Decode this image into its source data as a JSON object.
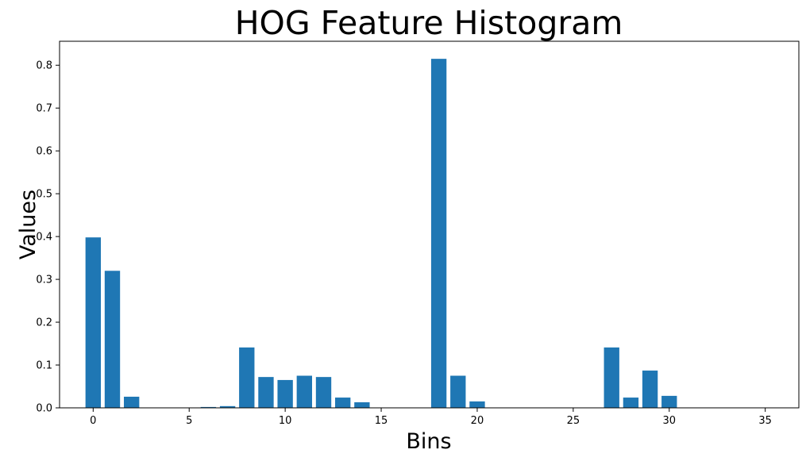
{
  "chart_data": {
    "type": "bar",
    "title": "HOG Feature Histogram",
    "xlabel": "Bins",
    "ylabel": "Values",
    "x": [
      0,
      1,
      2,
      3,
      4,
      5,
      6,
      7,
      8,
      9,
      10,
      11,
      12,
      13,
      14,
      15,
      16,
      17,
      18,
      19,
      20,
      21,
      22,
      23,
      24,
      25,
      26,
      27,
      28,
      29,
      30,
      31,
      32,
      33,
      34,
      35
    ],
    "values": [
      0.398,
      0.32,
      0.026,
      0,
      0,
      0,
      0.002,
      0.004,
      0.141,
      0.072,
      0.065,
      0.075,
      0.072,
      0.024,
      0.013,
      0,
      0,
      0,
      0.815,
      0.075,
      0.015,
      0,
      0,
      0,
      0,
      0,
      0,
      0.141,
      0.024,
      0.087,
      0.028,
      0,
      0,
      0,
      0,
      0
    ],
    "xlim": [
      -1.75,
      36.75
    ],
    "ylim": [
      0,
      0.856
    ],
    "xticks": [
      0,
      5,
      10,
      15,
      20,
      25,
      30,
      35
    ],
    "xtick_labels": [
      "0",
      "5",
      "10",
      "15",
      "20",
      "25",
      "30",
      "35"
    ],
    "yticks": [
      0,
      0.1,
      0.2,
      0.3,
      0.4,
      0.5,
      0.6,
      0.7,
      0.8
    ],
    "ytick_labels": [
      "0.0",
      "0.1",
      "0.2",
      "0.3",
      "0.4",
      "0.5",
      "0.6",
      "0.7",
      "0.8"
    ],
    "bar_color": "#1f77b4",
    "grid": false,
    "legend": "none"
  }
}
